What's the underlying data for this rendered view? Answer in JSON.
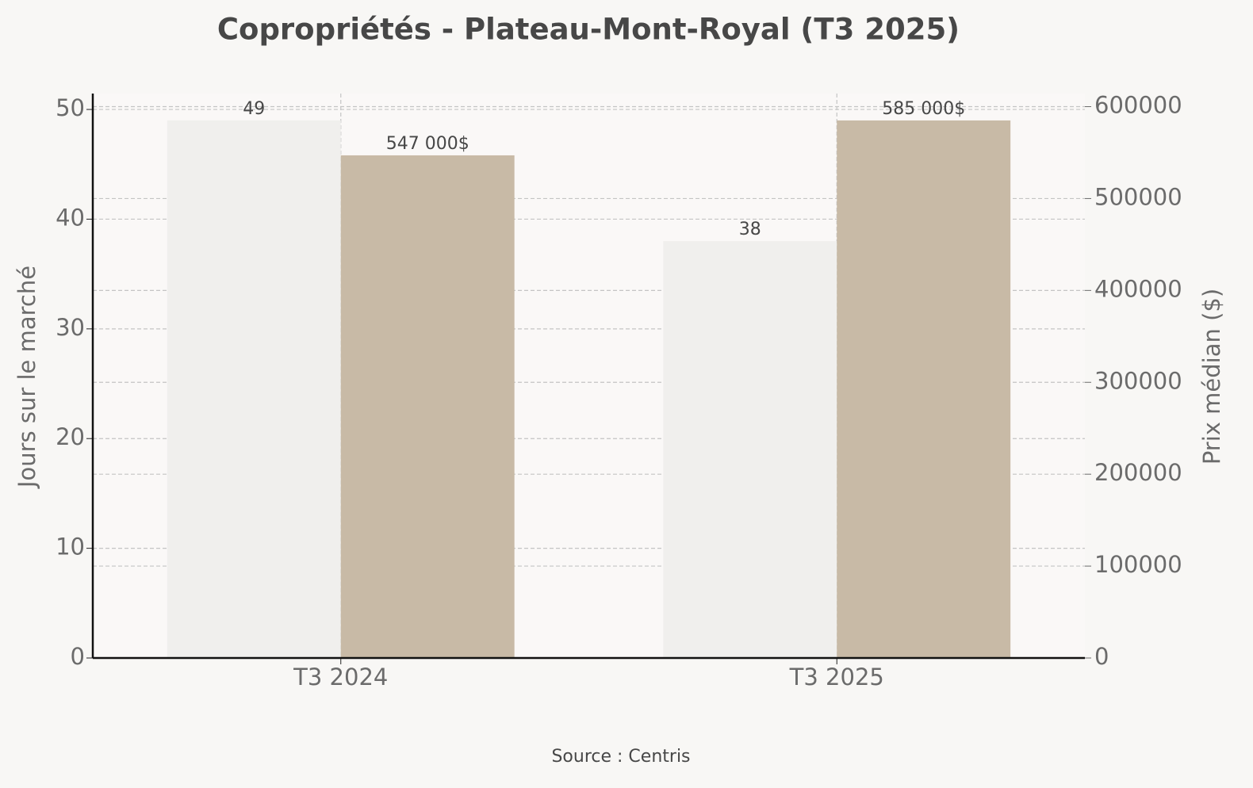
{
  "chart_data": {
    "type": "bar",
    "title": "Copropriétés - Plateau-Mont-Royal (T3 2025)",
    "source": "Source : Centris",
    "ylabel": "Jours sur le marché",
    "y2label": "Prix médian ($)",
    "categories": [
      "T3 2024",
      "T3 2025"
    ],
    "series": [
      {
        "name": "Jours sur le marché",
        "color": "#f0efed",
        "values": [
          49,
          38
        ]
      },
      {
        "name": "Prix médian ($)",
        "color": "#c8baa6",
        "axis": "y2",
        "values": [
          547000,
          585000
        ],
        "value_labels": [
          "547 000$",
          "585 000$"
        ]
      }
    ],
    "ylim": [
      0,
      51.45
    ],
    "yticks": [
      0,
      10,
      20,
      30,
      40,
      50
    ],
    "y2lim": [
      0,
      614250
    ],
    "y2ticks": [
      0,
      100000,
      200000,
      300000,
      400000,
      500000,
      600000
    ],
    "grid": true
  }
}
